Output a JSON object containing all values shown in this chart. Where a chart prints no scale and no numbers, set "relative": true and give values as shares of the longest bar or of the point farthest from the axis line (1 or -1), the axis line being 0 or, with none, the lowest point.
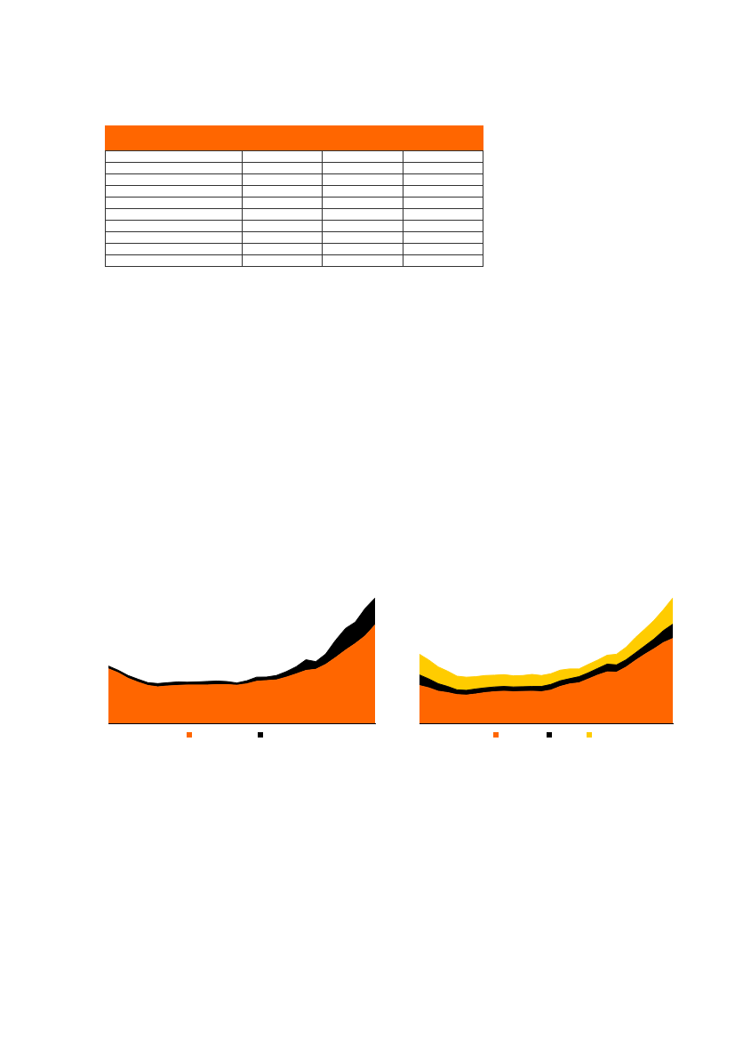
{
  "chart_data": [
    {
      "type": "area",
      "relative": true,
      "stacked": true,
      "categories": [
        null,
        null,
        null,
        null,
        null,
        null,
        null,
        null,
        null,
        null,
        null,
        null,
        null,
        null,
        null,
        null,
        null,
        null,
        null,
        null,
        null,
        null,
        null,
        null,
        null,
        null,
        null,
        null
      ],
      "series": [
        {
          "color": "#ff6600",
          "values": [
            0.435,
            0.403,
            0.359,
            0.328,
            0.302,
            0.291,
            0.298,
            0.302,
            0.306,
            0.306,
            0.306,
            0.309,
            0.309,
            0.304,
            0.315,
            0.335,
            0.341,
            0.346,
            0.368,
            0.394,
            0.422,
            0.431,
            0.47,
            0.525,
            0.584,
            0.637,
            0.698,
            0.786
          ]
        },
        {
          "color": "#000000",
          "values": [
            0.022,
            0.02,
            0.022,
            0.024,
            0.022,
            0.026,
            0.026,
            0.028,
            0.022,
            0.024,
            0.028,
            0.028,
            0.024,
            0.018,
            0.024,
            0.033,
            0.028,
            0.035,
            0.044,
            0.057,
            0.085,
            0.061,
            0.083,
            0.138,
            0.173,
            0.171,
            0.219,
            0.214
          ]
        }
      ]
    },
    {
      "type": "area",
      "relative": true,
      "stacked": true,
      "categories": [
        null,
        null,
        null,
        null,
        null,
        null,
        null,
        null,
        null,
        null,
        null,
        null,
        null,
        null,
        null,
        null,
        null,
        null,
        null,
        null,
        null,
        null,
        null,
        null,
        null,
        null,
        null,
        null
      ],
      "series": [
        {
          "color": "#ff6600",
          "values": [
            0.301,
            0.283,
            0.256,
            0.245,
            0.229,
            0.225,
            0.234,
            0.245,
            0.252,
            0.256,
            0.252,
            0.254,
            0.256,
            0.252,
            0.265,
            0.294,
            0.314,
            0.323,
            0.354,
            0.385,
            0.41,
            0.408,
            0.448,
            0.501,
            0.55,
            0.595,
            0.644,
            0.677
          ]
        },
        {
          "color": "#000000",
          "values": [
            0.085,
            0.071,
            0.06,
            0.049,
            0.038,
            0.038,
            0.04,
            0.038,
            0.038,
            0.038,
            0.038,
            0.038,
            0.038,
            0.042,
            0.045,
            0.045,
            0.042,
            0.049,
            0.049,
            0.053,
            0.062,
            0.058,
            0.058,
            0.06,
            0.067,
            0.078,
            0.096,
            0.114
          ]
        },
        {
          "color": "#ffcc00",
          "values": [
            0.165,
            0.151,
            0.134,
            0.122,
            0.109,
            0.105,
            0.098,
            0.098,
            0.094,
            0.094,
            0.089,
            0.089,
            0.096,
            0.087,
            0.085,
            0.085,
            0.078,
            0.062,
            0.067,
            0.067,
            0.071,
            0.085,
            0.1,
            0.122,
            0.134,
            0.149,
            0.167,
            0.209
          ]
        }
      ]
    }
  ]
}
